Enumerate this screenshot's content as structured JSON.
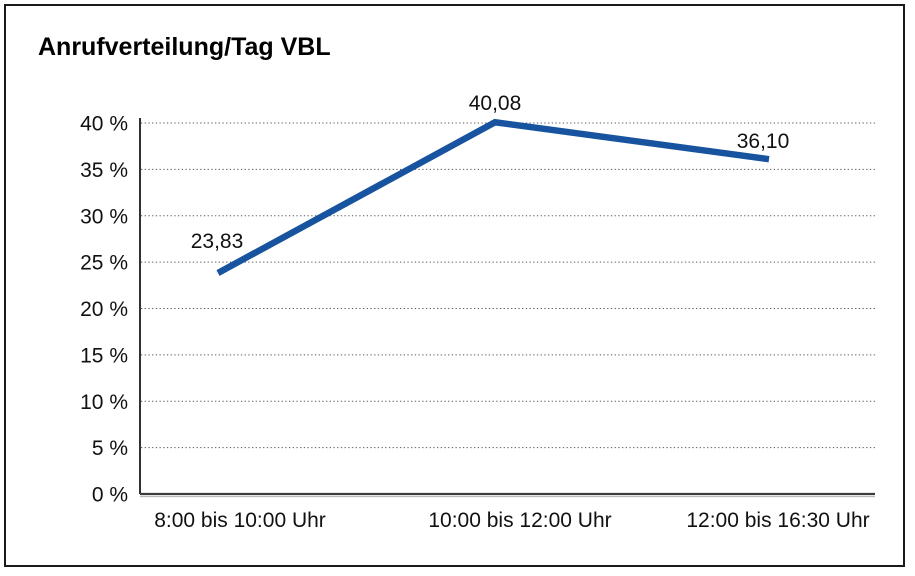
{
  "title": "Anrufverteilung/Tag VBL",
  "frame": {
    "background": "#ffffff",
    "border_color": "#1a1a1a"
  },
  "chart_data": {
    "type": "line",
    "title": "Anrufverteilung/Tag VBL",
    "categories": [
      "8:00 bis 10:00 Uhr",
      "10:00 bis 12:00 Uhr",
      "12:00 bis 16:30 Uhr"
    ],
    "series": [
      {
        "name": "Anrufverteilung",
        "values": [
          23.83,
          40.08,
          36.1
        ],
        "point_labels": [
          "23,83",
          "40,08",
          "36,10"
        ],
        "color": "#17539E",
        "line_width": 6.5
      }
    ],
    "xlabel": "",
    "ylabel": "",
    "ylim": [
      0,
      40
    ],
    "y_tick_step": 5,
    "y_tick_labels": [
      "0 %",
      "5 %",
      "10 %",
      "15 %",
      "20 %",
      "25 %",
      "30 %",
      "35 %",
      "40 %"
    ],
    "grid": "horizontal-dotted",
    "legend": "none",
    "data_labels_shown": true
  }
}
